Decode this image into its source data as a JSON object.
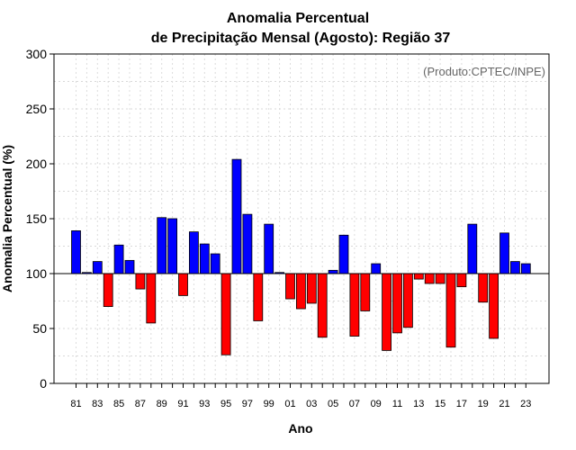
{
  "chart_data": {
    "type": "bar",
    "title": [
      "Anomalia Percentual",
      "de Precipitação Mensal (Agosto): Região 37"
    ],
    "xlabel": "Ano",
    "ylabel": "Anomalia Percentual (%)",
    "credit": "(Produto:CPTEC/INPE)",
    "ylim": [
      0,
      300
    ],
    "yticks": [
      0,
      50,
      100,
      150,
      200,
      250,
      300
    ],
    "baseline": 100,
    "grid": true,
    "colors": {
      "above": "#0000ff",
      "below": "#ff0000",
      "baseline": "#000000"
    },
    "xtick_labels": [
      "81",
      "83",
      "85",
      "87",
      "89",
      "91",
      "93",
      "95",
      "97",
      "99",
      "01",
      "03",
      "05",
      "07",
      "09",
      "11",
      "13",
      "15",
      "17",
      "19",
      "21",
      "23"
    ],
    "categories": [
      "1981",
      "1982",
      "1983",
      "1984",
      "1985",
      "1986",
      "1987",
      "1988",
      "1989",
      "1990",
      "1991",
      "1992",
      "1993",
      "1994",
      "1995",
      "1996",
      "1997",
      "1998",
      "1999",
      "2000",
      "2001",
      "2002",
      "2003",
      "2004",
      "2005",
      "2006",
      "2007",
      "2008",
      "2009",
      "2010",
      "2011",
      "2012",
      "2013",
      "2014",
      "2015",
      "2016",
      "2017",
      "2018",
      "2019",
      "2020",
      "2021",
      "2022",
      "2023"
    ],
    "values": [
      139,
      101,
      111,
      70,
      126,
      112,
      86,
      55,
      151,
      150,
      80,
      138,
      127,
      118,
      26,
      204,
      154,
      57,
      145,
      101,
      77,
      68,
      73,
      42,
      103,
      135,
      43,
      66,
      109,
      30,
      46,
      51,
      95,
      91,
      91,
      33,
      88,
      145,
      74,
      41,
      137,
      111,
      109
    ]
  }
}
